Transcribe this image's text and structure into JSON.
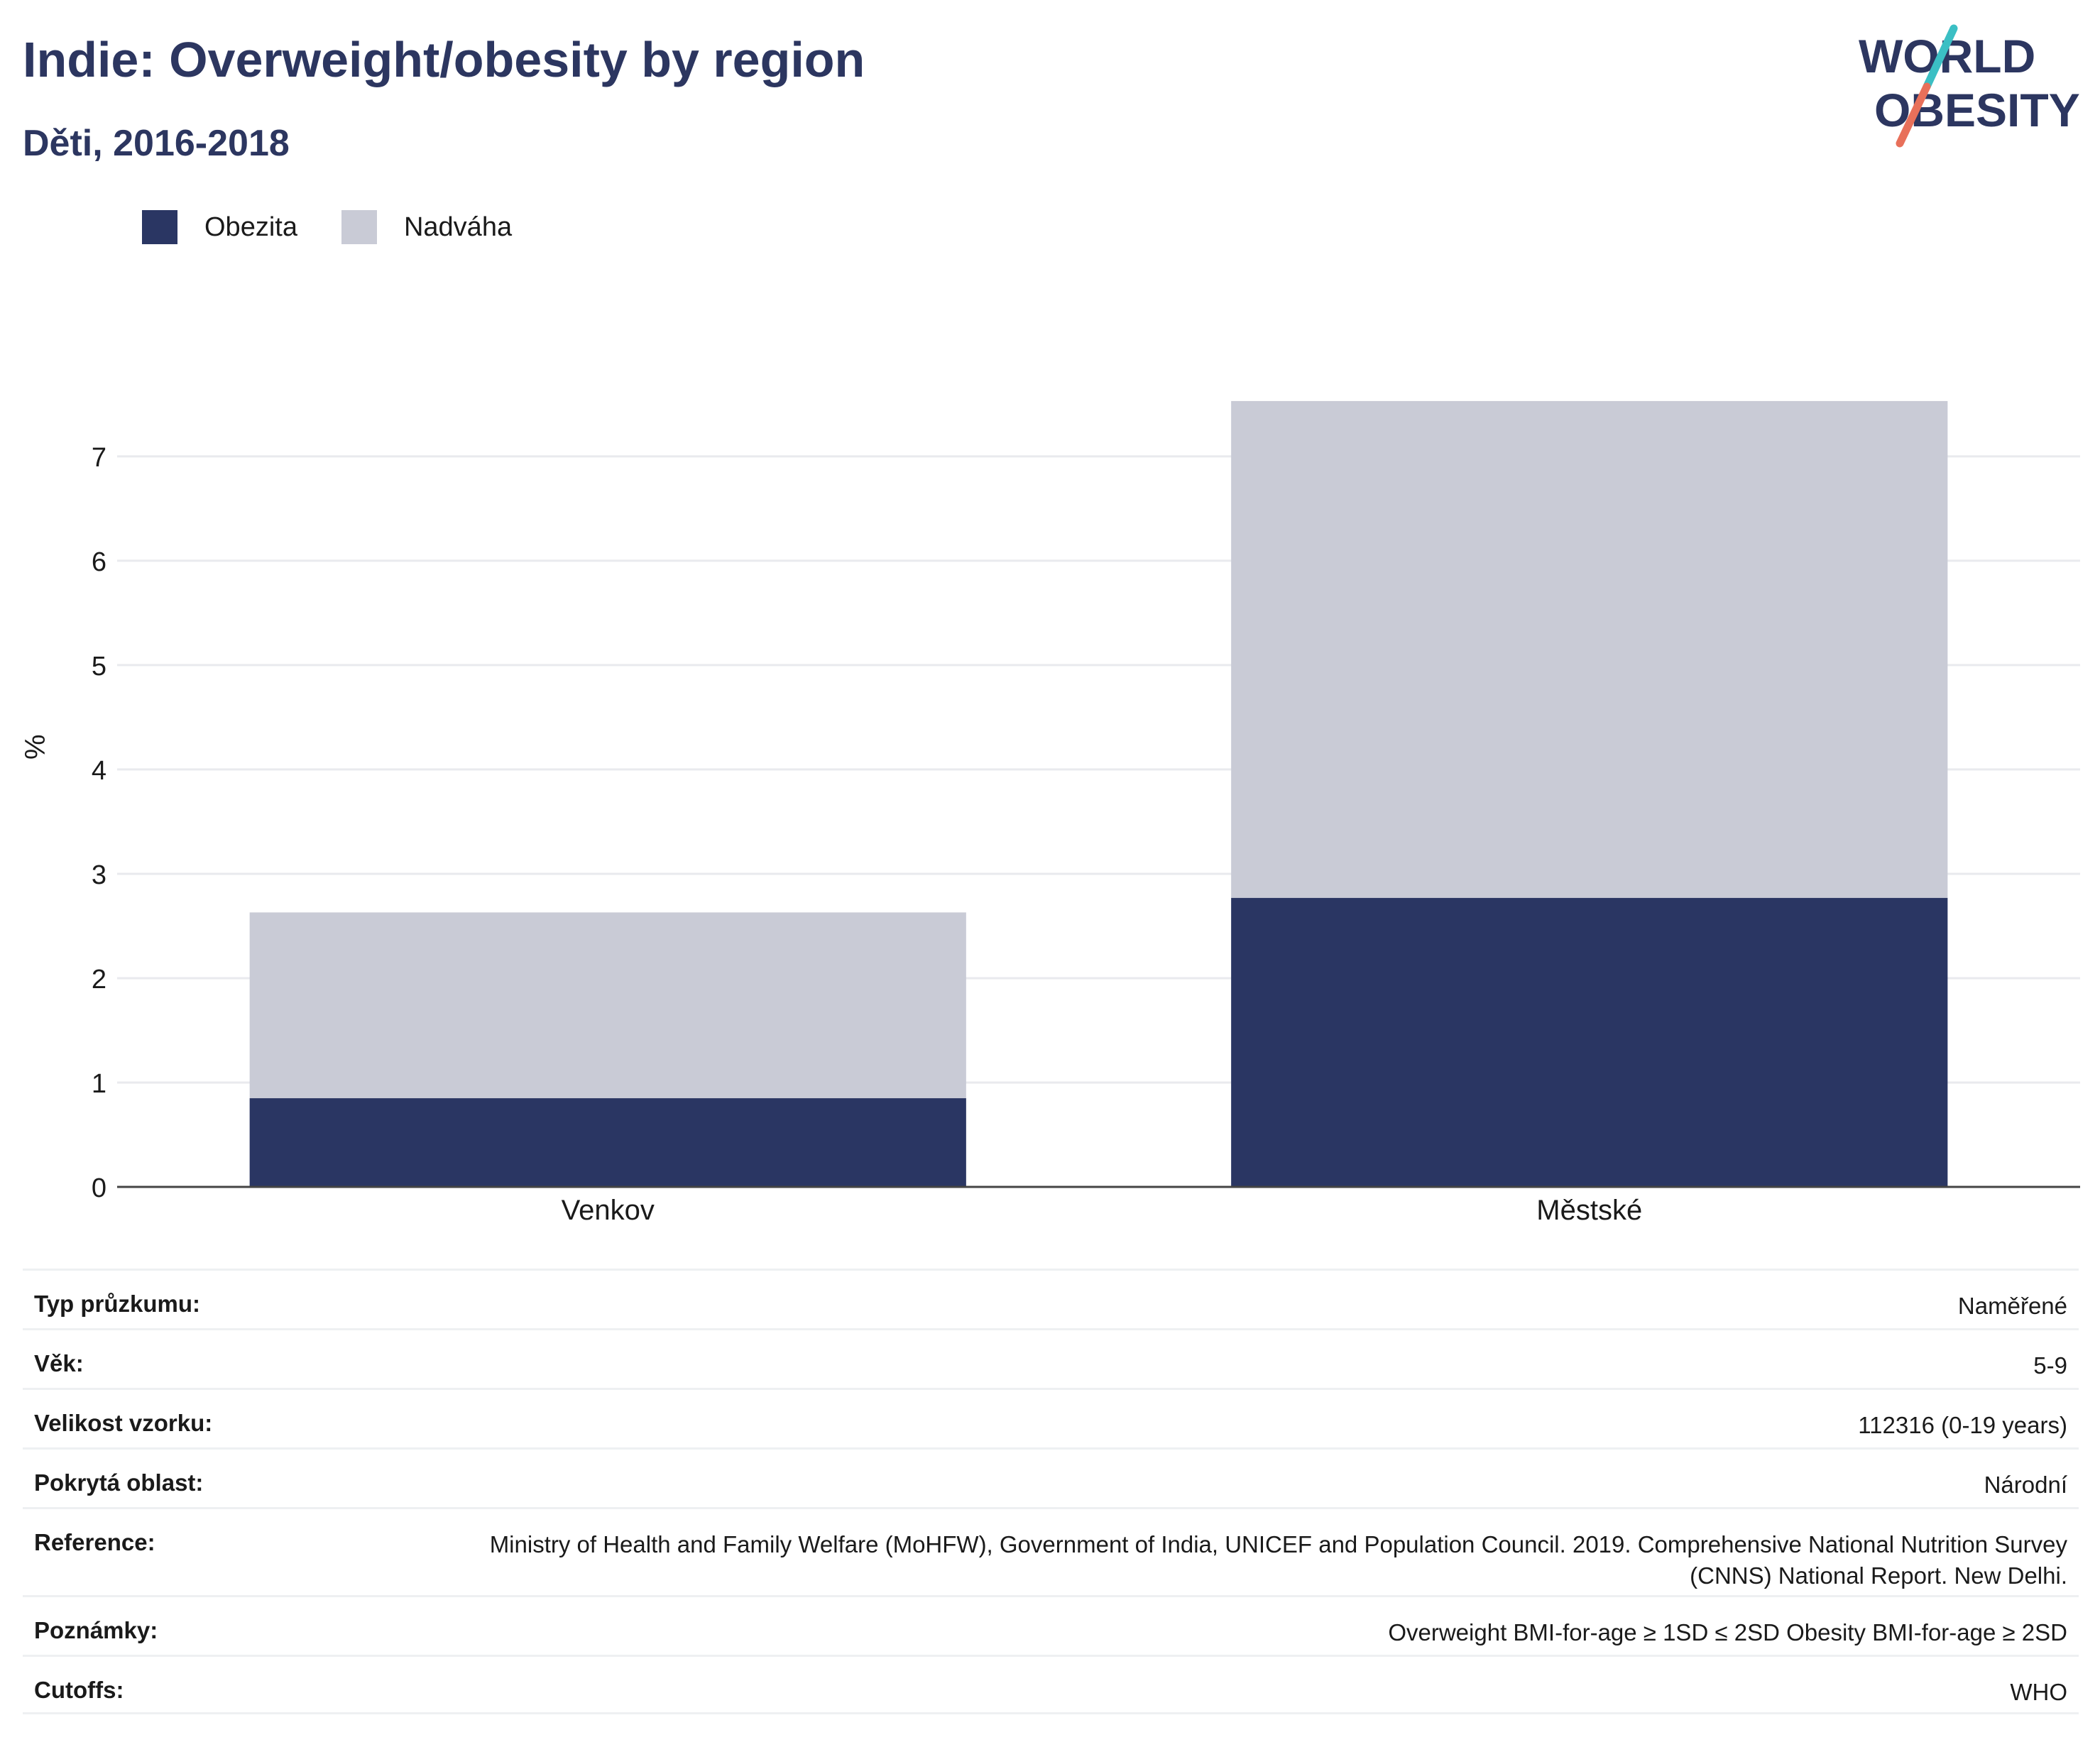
{
  "header": {
    "title": "Indie: Overweight/obesity by region",
    "subtitle": "Děti, 2016-2018"
  },
  "logo": {
    "line1": "WORLD",
    "line2": "OBESITY",
    "colors": {
      "text": "#2c3660",
      "slash_top": "#3bbfc4",
      "slash_bottom": "#e8705a"
    }
  },
  "chart_data": {
    "type": "bar",
    "stacked": true,
    "categories": [
      "Venkov",
      "Městské"
    ],
    "series": [
      {
        "name": "Obezita",
        "values": [
          0.85,
          2.77
        ],
        "color": "#2a3663"
      },
      {
        "name": "Nadváha",
        "values": [
          1.78,
          4.76
        ],
        "color": "#c9cbd6"
      }
    ],
    "ylabel": "%",
    "ylim": [
      0,
      7.55
    ],
    "yticks": [
      0,
      1,
      2,
      3,
      4,
      5,
      6,
      7
    ],
    "grid": true,
    "legend": "top-left"
  },
  "meta": {
    "rows": [
      {
        "label": "Typ průzkumu:",
        "value": "Naměřené"
      },
      {
        "label": "Věk:",
        "value": "5-9"
      },
      {
        "label": "Velikost vzorku:",
        "value": "112316 (0-19 years)"
      },
      {
        "label": "Pokrytá oblast:",
        "value": "Národní"
      },
      {
        "label": "Reference:",
        "value": "Ministry of Health and Family Welfare (MoHFW), Government of India, UNICEF and Population Council. 2019. Comprehensive National Nutrition Survey (CNNS) National Report. New Delhi."
      },
      {
        "label": "Poznámky:",
        "value": "Overweight BMI-for-age ≥ 1SD ≤ 2SD Obesity BMI-for-age ≥ 2SD"
      },
      {
        "label": "Cutoffs:",
        "value": "WHO"
      }
    ]
  }
}
